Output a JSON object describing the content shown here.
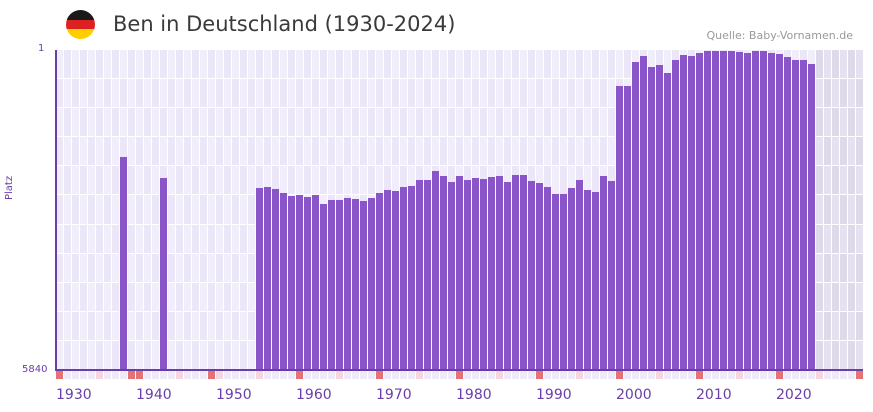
{
  "header": {
    "title": "Ben in Deutschland (1930-2024)",
    "source": "Quelle: Baby-Vornamen.de",
    "flag_colors": [
      "#1a1a1a",
      "#dd2020",
      "#ffce00"
    ]
  },
  "colors": {
    "bar": "#8a55c8",
    "axis": "#6a3ea8",
    "grid_a": "#f1eefb",
    "grid_b": "#ebe6f8",
    "future_a": "#e5e1ef",
    "future_b": "#dfdaea",
    "marker_decade": "#e57373",
    "marker_half": "#f5d6de",
    "marker_default": "#efeaf8"
  },
  "chart_data": {
    "type": "bar",
    "title": "Ben in Deutschland (1930-2024)",
    "xlabel": "",
    "ylabel": "Platz",
    "y_inverted": true,
    "ylim": [
      1,
      5840
    ],
    "xlim": [
      1930,
      2030
    ],
    "y_ticks": [
      "1",
      "5840"
    ],
    "x_ticks": [
      "1930",
      "1940",
      "1950",
      "1960",
      "1970",
      "1980",
      "1990",
      "2000",
      "2010",
      "2020"
    ],
    "grid": true,
    "legend": null,
    "source": "Quelle: Baby-Vornamen.de",
    "x": [
      1938,
      1943,
      1955,
      1956,
      1957,
      1958,
      1959,
      1960,
      1961,
      1962,
      1963,
      1964,
      1965,
      1966,
      1967,
      1968,
      1969,
      1970,
      1971,
      1972,
      1973,
      1974,
      1975,
      1976,
      1977,
      1978,
      1979,
      1980,
      1981,
      1982,
      1983,
      1984,
      1985,
      1986,
      1987,
      1988,
      1989,
      1990,
      1991,
      1992,
      1993,
      1994,
      1995,
      1996,
      1997,
      1998,
      1999,
      2000,
      2001,
      2002,
      2003,
      2004,
      2005,
      2006,
      2007,
      2008,
      2009,
      2010,
      2011,
      2012,
      2013,
      2014,
      2015,
      2016,
      2017,
      2018,
      2019,
      2020,
      2021,
      2022,
      2023,
      2024
    ],
    "values": [
      1953,
      2337,
      2520,
      2502,
      2538,
      2611,
      2666,
      2648,
      2684,
      2648,
      2812,
      2739,
      2739,
      2703,
      2721,
      2757,
      2703,
      2611,
      2557,
      2575,
      2502,
      2484,
      2374,
      2374,
      2210,
      2301,
      2410,
      2301,
      2374,
      2338,
      2356,
      2319,
      2301,
      2410,
      2283,
      2283,
      2392,
      2429,
      2502,
      2630,
      2630,
      2520,
      2374,
      2557,
      2593,
      2301,
      2392,
      658,
      658,
      220,
      111,
      312,
      275,
      421,
      184,
      92,
      111,
      56,
      19,
      19,
      19,
      19,
      38,
      56,
      19,
      19,
      56,
      74,
      129,
      184,
      184,
      257
    ]
  }
}
